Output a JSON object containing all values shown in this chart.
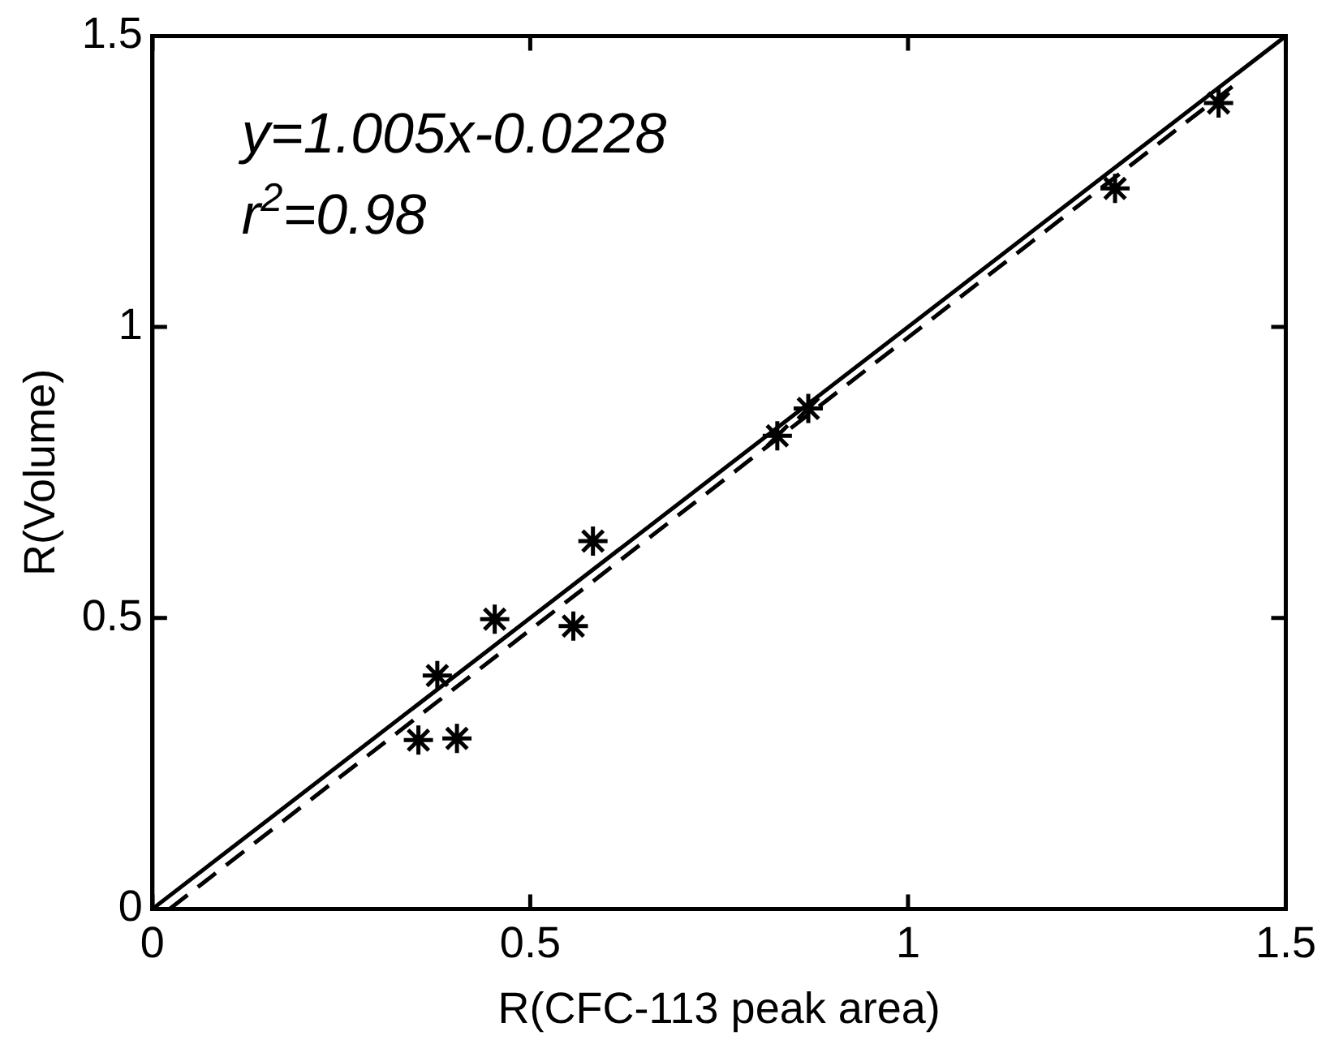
{
  "chart_data": {
    "type": "scatter",
    "xlabel": "R(CFC-113 peak area)",
    "ylabel": "R(Volume)",
    "xlim": [
      0,
      1.5
    ],
    "ylim": [
      0,
      1.5
    ],
    "xticks": [
      0,
      0.5,
      1,
      1.5
    ],
    "yticks": [
      0,
      0.5,
      1,
      1.5
    ],
    "grid": false,
    "legend": false,
    "marker": "cross",
    "annotations": [
      "y=1.005x-0.0228",
      "r$^{2}$=0.98"
    ],
    "series": [
      {
        "color": "#000000",
        "x": [
          0.352,
          0.403,
          0.377,
          0.453,
          0.557,
          0.583,
          0.827,
          0.868,
          1.274,
          1.411
        ],
        "values": [
          0.29,
          0.293,
          0.401,
          0.498,
          0.486,
          0.632,
          0.813,
          0.86,
          1.238,
          1.385
        ]
      },
      {
        "type": "line",
        "color": "#000000",
        "line_style": "solid",
        "marker": "none",
        "x": [
          0,
          1.5
        ],
        "values": [
          0,
          1.5
        ]
      },
      {
        "type": "line",
        "color": "#000000",
        "line_style": "dashed",
        "marker": "none",
        "x": [
          0.0227,
          1.44
        ],
        "values": [
          0,
          1.424
        ]
      }
    ]
  }
}
